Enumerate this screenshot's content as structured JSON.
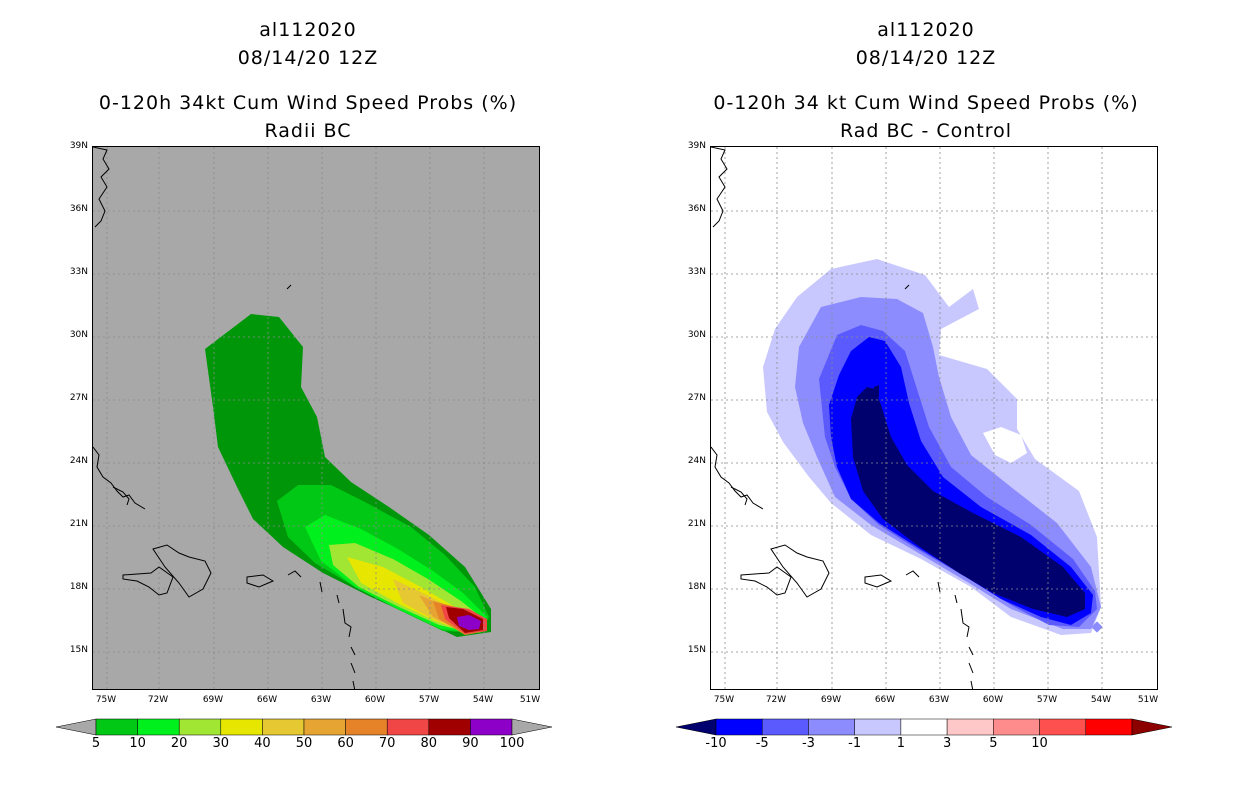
{
  "left_panel": {
    "storm_id": "al112020",
    "datetime": "08/14/20 12Z",
    "title": "0-120h 34kt Cum Wind Speed Probs (%)",
    "subtitle": "Radii BC",
    "background_color": "#a8a8a8",
    "colorbar": {
      "labels": [
        "5",
        "10",
        "20",
        "30",
        "40",
        "50",
        "60",
        "70",
        "80",
        "90",
        "100"
      ],
      "colors": [
        "#00960a",
        "#00c814",
        "#00f01e",
        "#a0e632",
        "#e6e600",
        "#e6c832",
        "#e6a532",
        "#e68228",
        "#f04646",
        "#a00000",
        "#8c00c8"
      ],
      "extend_color": "#a8a8a8"
    }
  },
  "right_panel": {
    "storm_id": "al112020",
    "datetime": "08/14/20 12Z",
    "title": "0-120h 34 kt Cum Wind Speed Probs (%)",
    "subtitle": "Rad BC - Control",
    "background_color": "#ffffff",
    "colorbar": {
      "labels": [
        "-10",
        "-5",
        "-3",
        "-1",
        "1",
        "3",
        "5",
        "10"
      ],
      "colors": [
        "#00006e",
        "#0000ff",
        "#5a5aff",
        "#8c8cff",
        "#c8c8ff",
        "#ffffff",
        "#ffc8c8",
        "#ff8c8c",
        "#ff5050",
        "#ff0000",
        "#8c0000"
      ]
    }
  },
  "map": {
    "lat_labels": [
      "39N",
      "36N",
      "33N",
      "30N",
      "27N",
      "24N",
      "21N",
      "18N",
      "15N"
    ],
    "lon_labels": [
      "75W",
      "72W",
      "69W",
      "66W",
      "63W",
      "60W",
      "57W",
      "54W",
      "51W"
    ]
  }
}
